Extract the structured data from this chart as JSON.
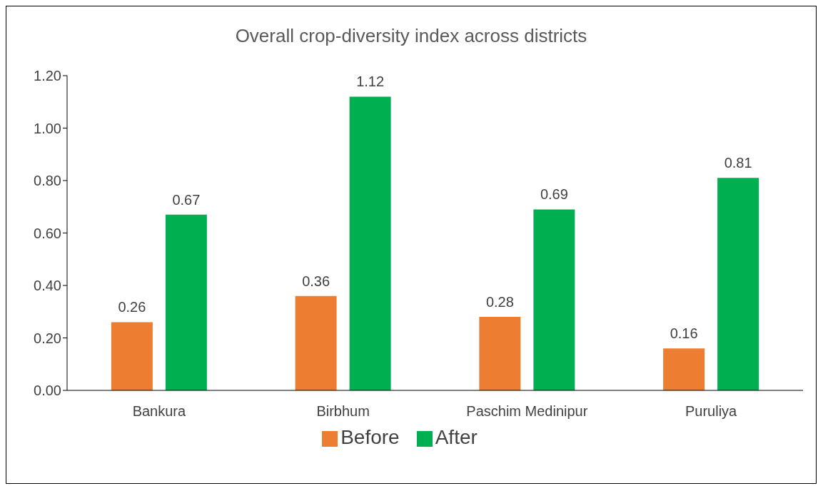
{
  "chart_data": {
    "type": "bar",
    "title": "Overall crop-diversity index across districts",
    "categories": [
      "Bankura",
      "Birbhum",
      "Paschim Medinipur",
      "Puruliya"
    ],
    "series": [
      {
        "name": "Before",
        "color": "#ed7d31",
        "values": [
          0.26,
          0.36,
          0.28,
          0.16
        ]
      },
      {
        "name": "After",
        "color": "#00b050",
        "values": [
          0.67,
          1.12,
          0.69,
          0.81
        ]
      }
    ],
    "ylim": [
      0,
      1.2
    ],
    "yticks": [
      {
        "value": 0,
        "label": "0.00"
      },
      {
        "value": 0.2,
        "label": "0.20"
      },
      {
        "value": 0.4,
        "label": "0.40"
      },
      {
        "value": 0.6,
        "label": "0.60"
      },
      {
        "value": 0.8,
        "label": "0.80"
      },
      {
        "value": 1,
        "label": "1.00"
      },
      {
        "value": 1.2,
        "label": "1.20"
      }
    ],
    "data_labels": true,
    "grid": false,
    "legend": "bottom"
  }
}
